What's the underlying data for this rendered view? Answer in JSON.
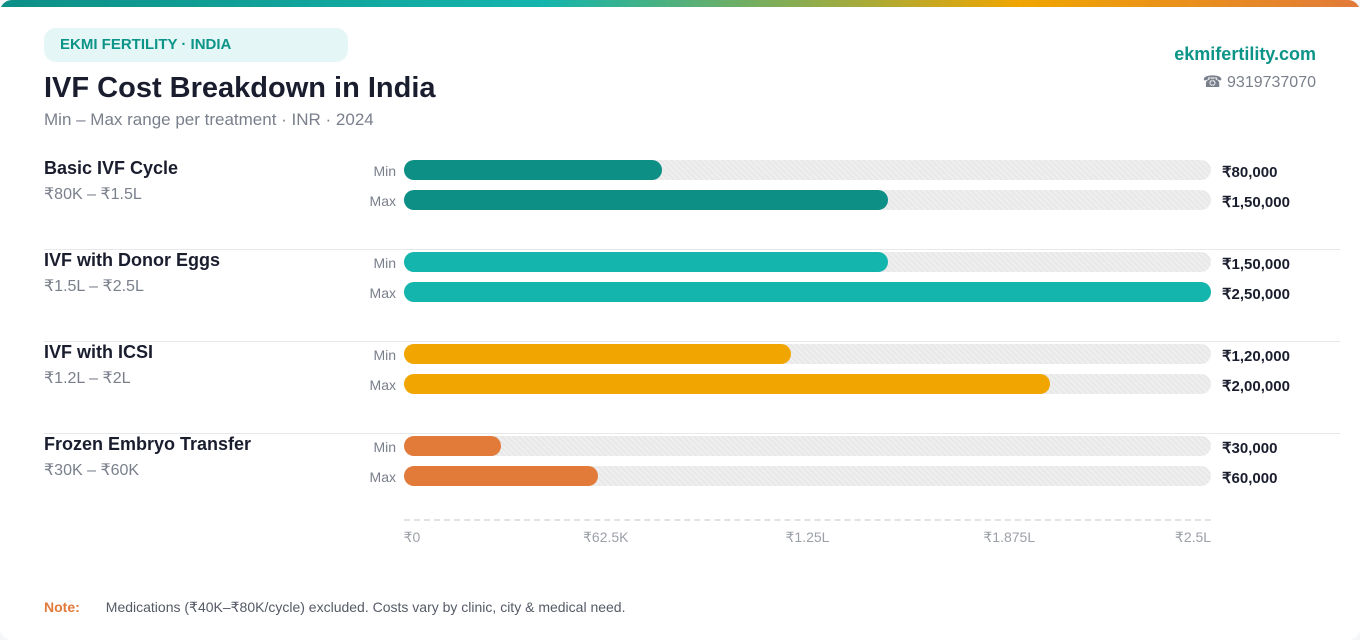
{
  "header": {
    "badge": "EKMI FERTILITY · INDIA",
    "title": "IVF Cost Breakdown in India",
    "subtitle": "Min – Max range per treatment  ·  INR  ·  2024",
    "site": "ekmifertility.com",
    "phone_icon": "telephone-icon",
    "phone": "☎ 9319737070"
  },
  "chart_data": {
    "type": "bar",
    "orientation": "horizontal",
    "xlim": [
      0,
      250000
    ],
    "row_labels": [
      "Min",
      "Max"
    ],
    "categories": [
      {
        "name": "Basic IVF Cycle",
        "range": "₹80K – ₹1.5L",
        "min": 80000,
        "max": 150000,
        "min_label": "₹80,000",
        "max_label": "₹1,50,000",
        "color": "#0d8f86"
      },
      {
        "name": "IVF with Donor Eggs",
        "range": "₹1.5L – ₹2.5L",
        "min": 150000,
        "max": 250000,
        "min_label": "₹1,50,000",
        "max_label": "₹2,50,000",
        "color": "#14b5ad"
      },
      {
        "name": "IVF with ICSI",
        "range": "₹1.2L – ₹2L",
        "min": 120000,
        "max": 200000,
        "min_label": "₹1,20,000",
        "max_label": "₹2,00,000",
        "color": "#f0a500"
      },
      {
        "name": "Frozen Embryo Transfer",
        "range": "₹30K – ₹60K",
        "min": 30000,
        "max": 60000,
        "min_label": "₹30,000",
        "max_label": "₹60,000",
        "color": "#e27a3a"
      }
    ],
    "ticks": [
      {
        "value": 0,
        "label": "₹0"
      },
      {
        "value": 62500,
        "label": "₹62.5K"
      },
      {
        "value": 125000,
        "label": "₹1.25L"
      },
      {
        "value": 187500,
        "label": "₹1.875L"
      },
      {
        "value": 250000,
        "label": "₹2.5L"
      }
    ],
    "grid": false
  },
  "footer": {
    "note_label": "Note:",
    "note": "Medications (₹40K–₹80K/cycle) excluded. Costs vary by clinic, city & medical need."
  }
}
